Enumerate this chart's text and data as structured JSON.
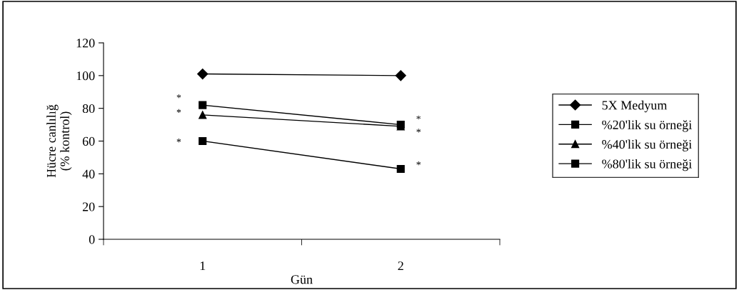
{
  "chart_data": {
    "type": "line",
    "xlabel": "Gün",
    "ylabel": "Hücre canlılığ\n(% kontrol)",
    "categories": [
      "1",
      "2"
    ],
    "series": [
      {
        "name": "5X Medyum",
        "color": "#000000",
        "marker": "diamond",
        "values": [
          101,
          100
        ]
      },
      {
        "name": "%20'lik su örneği",
        "color": "#000000",
        "marker": "square",
        "values": [
          82,
          70
        ]
      },
      {
        "name": "%40'lik su örneği",
        "color": "#000000",
        "marker": "triangle",
        "values": [
          76,
          69
        ]
      },
      {
        "name": "%80'lik su örneği",
        "color": "#000000",
        "marker": "square",
        "values": [
          60,
          43
        ]
      }
    ],
    "ylim": [
      0,
      120
    ],
    "yticks": [
      0,
      20,
      40,
      60,
      80,
      100,
      120
    ],
    "grid": false,
    "legend": "right",
    "line_style": "solid",
    "annotations": [
      {
        "text": "*",
        "x": "1",
        "y": 86
      },
      {
        "text": "*",
        "x": "1",
        "y": 77
      },
      {
        "text": "*",
        "x": "1",
        "y": 59
      },
      {
        "text": "*",
        "x": "2",
        "y": 73
      },
      {
        "text": "*",
        "x": "2",
        "y": 65
      },
      {
        "text": "*",
        "x": "2",
        "y": 45
      }
    ]
  }
}
